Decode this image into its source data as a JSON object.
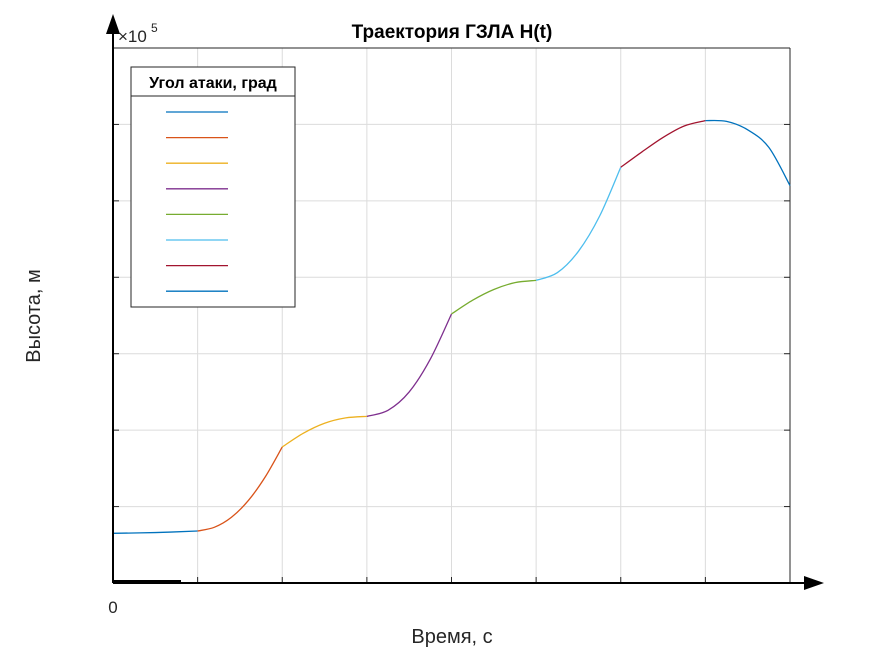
{
  "chart_data": {
    "type": "line",
    "title": "Траектория ГЗЛА H(t)",
    "xlabel": "Время, с",
    "ylabel": "Высота, м",
    "y_exponent_label": "×10",
    "y_exponent_power": "5",
    "x_tick_labels": [
      "0"
    ],
    "xlim": [
      0,
      8
    ],
    "ylim": [
      0,
      7
    ],
    "grid": true,
    "legend": {
      "title": "Угол атаки, град",
      "placement": "top-left",
      "entries": [
        "",
        "",
        "",
        "",
        "",
        "",
        "",
        ""
      ]
    },
    "series": [
      {
        "color": "#0072BD",
        "x": [
          0,
          0.5,
          1.0
        ],
        "y": [
          0.65,
          0.66,
          0.68
        ]
      },
      {
        "color": "#D95319",
        "x": [
          1.0,
          1.2,
          1.4,
          1.6,
          1.8,
          2.0
        ],
        "y": [
          0.68,
          0.73,
          0.86,
          1.08,
          1.39,
          1.78
        ]
      },
      {
        "color": "#EDB120",
        "x": [
          2.0,
          2.25,
          2.5,
          2.75,
          3.0
        ],
        "y": [
          1.78,
          1.96,
          2.09,
          2.16,
          2.18
        ]
      },
      {
        "color": "#7E2F8E",
        "x": [
          3.0,
          3.25,
          3.5,
          3.75,
          4.0
        ],
        "y": [
          2.18,
          2.26,
          2.5,
          2.93,
          3.52
        ]
      },
      {
        "color": "#77AC30",
        "x": [
          4.0,
          4.25,
          4.5,
          4.75,
          5.0
        ],
        "y": [
          3.52,
          3.7,
          3.84,
          3.93,
          3.96
        ]
      },
      {
        "color": "#4DBEEE",
        "x": [
          5.0,
          5.25,
          5.5,
          5.75,
          6.0
        ],
        "y": [
          3.96,
          4.06,
          4.34,
          4.8,
          5.44
        ]
      },
      {
        "color": "#A2142F",
        "x": [
          6.0,
          6.25,
          6.5,
          6.75,
          7.0
        ],
        "y": [
          5.44,
          5.64,
          5.83,
          5.98,
          6.05
        ]
      },
      {
        "color": "#0072BD",
        "x": [
          7.0,
          7.25,
          7.5,
          7.75,
          8.0
        ],
        "y": [
          6.05,
          6.04,
          5.93,
          5.7,
          5.2
        ]
      }
    ]
  }
}
